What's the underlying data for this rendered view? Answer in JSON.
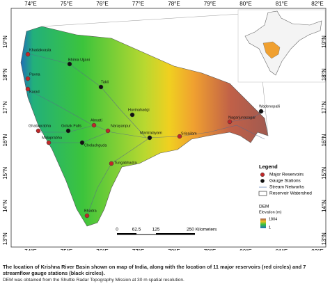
{
  "map": {
    "longitude_labels": [
      "74°E",
      "75°E",
      "76°E",
      "77°E",
      "78°E",
      "79°E",
      "80°E",
      "81°E",
      "82°E"
    ],
    "latitude_labels": [
      "19°N",
      "18°N",
      "17°N",
      "16°N",
      "15°N",
      "14°N",
      "13°N"
    ],
    "places": [
      "Khadakvasla",
      "Bhima Ujjani",
      "Pavna",
      "Karad",
      "Takli",
      "Wadenepalli",
      "Nagarjunasagar",
      "Huvinahadgi",
      "Mantralayam",
      "Srisailam",
      "Narayanpur",
      "Almatti",
      "Gokak Falls",
      "Ghataprabha",
      "Malaprabha",
      "Cholachguda",
      "Tungabhadra",
      "Bhadra"
    ],
    "legend": {
      "title": "Legend",
      "items": [
        "Major Reservoirs",
        "Gauge Stations",
        "Stream Networks",
        "Reservoir Watershed"
      ],
      "dem_title": "DEM",
      "dem_unit": "Elevation (m)",
      "dem_max": "1804",
      "dem_min": "1"
    },
    "scale": {
      "labels": [
        "0",
        "62.5",
        "125",
        "250 Kilometers"
      ]
    }
  },
  "caption": {
    "line1": "The location of Krishna River Basin shown on map of India, along with the location of 11 major reservoirs (red circles) and 7 streamflow gauge stations (black circles).",
    "line2": "DEM was obtained from the Shuttle Radar Topography Mission at 30 m spatial resolution."
  }
}
